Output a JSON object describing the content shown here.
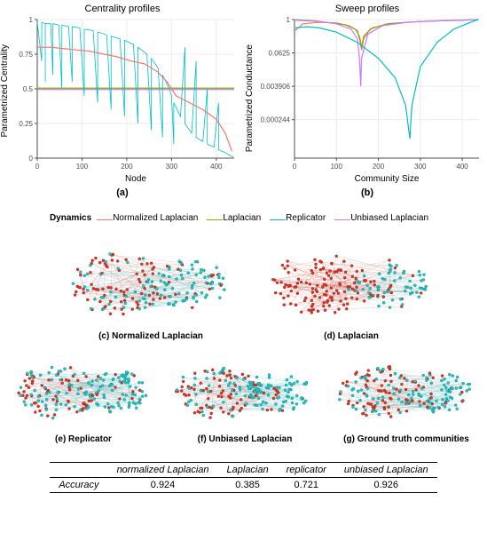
{
  "panel_a": {
    "title": "Centrality profiles",
    "label": "(a)",
    "xlabel": "Node",
    "ylabel": "Parametrized Centrality",
    "xlim": [
      0,
      440
    ],
    "xticks": [
      0,
      100,
      200,
      300,
      400
    ],
    "ylim": [
      0,
      1
    ],
    "yticks": [
      0,
      0.25,
      0.5,
      0.75,
      1
    ],
    "ref_line_y": 0.5,
    "bg": "#ffffff",
    "grid": "#ebebeb",
    "axis": "#4d4d4d",
    "series": {
      "norm_lap": {
        "color": "#f8766d",
        "pts": [
          [
            0,
            0.8
          ],
          [
            30,
            0.8
          ],
          [
            60,
            0.79
          ],
          [
            90,
            0.78
          ],
          [
            120,
            0.77
          ],
          [
            150,
            0.75
          ],
          [
            180,
            0.73
          ],
          [
            210,
            0.7
          ],
          [
            240,
            0.68
          ],
          [
            270,
            0.62
          ],
          [
            290,
            0.55
          ],
          [
            300,
            0.5
          ],
          [
            310,
            0.45
          ],
          [
            340,
            0.4
          ],
          [
            370,
            0.35
          ],
          [
            400,
            0.28
          ],
          [
            420,
            0.18
          ],
          [
            435,
            0.05
          ]
        ]
      },
      "lap": {
        "color": "#7cae00",
        "pts": [
          [
            0,
            0.505
          ],
          [
            440,
            0.505
          ]
        ]
      },
      "unb_lap": {
        "color": "#c77cff",
        "pts": [
          [
            0,
            0.495
          ],
          [
            440,
            0.495
          ]
        ]
      },
      "replicator": {
        "color": "#00bfc4",
        "pts": [
          [
            0,
            0.98
          ],
          [
            10,
            0.7
          ],
          [
            10,
            0.98
          ],
          [
            18,
            0.97
          ],
          [
            18,
            0.55
          ],
          [
            18,
            0.97
          ],
          [
            30,
            0.97
          ],
          [
            35,
            0.6
          ],
          [
            35,
            0.97
          ],
          [
            48,
            0.96
          ],
          [
            55,
            0.5
          ],
          [
            55,
            0.96
          ],
          [
            70,
            0.95
          ],
          [
            78,
            0.55
          ],
          [
            78,
            0.95
          ],
          [
            95,
            0.94
          ],
          [
            105,
            0.45
          ],
          [
            105,
            0.93
          ],
          [
            125,
            0.92
          ],
          [
            135,
            0.4
          ],
          [
            135,
            0.91
          ],
          [
            155,
            0.89
          ],
          [
            165,
            0.35
          ],
          [
            165,
            0.88
          ],
          [
            185,
            0.86
          ],
          [
            195,
            0.3
          ],
          [
            195,
            0.85
          ],
          [
            215,
            0.82
          ],
          [
            225,
            0.25
          ],
          [
            225,
            0.8
          ],
          [
            245,
            0.75
          ],
          [
            255,
            0.2
          ],
          [
            255,
            0.72
          ],
          [
            270,
            0.65
          ],
          [
            280,
            0.15
          ],
          [
            280,
            0.6
          ],
          [
            295,
            0.5
          ],
          [
            300,
            0.45
          ],
          [
            305,
            0.1
          ],
          [
            305,
            0.4
          ],
          [
            320,
            0.3
          ],
          [
            330,
            0.8
          ],
          [
            330,
            0.25
          ],
          [
            345,
            0.18
          ],
          [
            355,
            0.7
          ],
          [
            355,
            0.15
          ],
          [
            370,
            0.12
          ],
          [
            380,
            0.5
          ],
          [
            380,
            0.1
          ],
          [
            395,
            0.08
          ],
          [
            405,
            0.4
          ],
          [
            405,
            0.06
          ],
          [
            420,
            0.04
          ],
          [
            430,
            0.02
          ],
          [
            438,
            0.01
          ]
        ]
      }
    }
  },
  "panel_b": {
    "title": "Sweep profiles",
    "label": "(b)",
    "xlabel": "Community Size",
    "ylabel": "Parametrized Conductance",
    "xlim": [
      0,
      440
    ],
    "xticks": [
      0,
      100,
      200,
      300,
      400
    ],
    "yticks_log": [
      0.000244,
      0.003906,
      0.0625,
      1
    ],
    "bg": "#ffffff",
    "grid": "#ebebeb",
    "axis": "#4d4d4d",
    "series": {
      "norm_lap": {
        "color": "#f8766d",
        "pts_log": [
          [
            2,
            0.4
          ],
          [
            20,
            0.7
          ],
          [
            60,
            0.8
          ],
          [
            100,
            0.75
          ],
          [
            130,
            0.6
          ],
          [
            150,
            0.4
          ],
          [
            155,
            0.2
          ],
          [
            160,
            0.08
          ],
          [
            165,
            0.2
          ],
          [
            180,
            0.45
          ],
          [
            220,
            0.7
          ],
          [
            280,
            0.82
          ],
          [
            350,
            0.9
          ],
          [
            420,
            0.97
          ],
          [
            438,
            1.0
          ]
        ]
      },
      "lap": {
        "color": "#7cae00",
        "pts_log": [
          [
            2,
            0.95
          ],
          [
            60,
            0.85
          ],
          [
            120,
            0.65
          ],
          [
            145,
            0.45
          ],
          [
            155,
            0.25
          ],
          [
            160,
            0.1
          ],
          [
            165,
            0.25
          ],
          [
            185,
            0.5
          ],
          [
            230,
            0.72
          ],
          [
            300,
            0.85
          ],
          [
            380,
            0.93
          ],
          [
            438,
            1.0
          ]
        ]
      },
      "replicator": {
        "color": "#00bfc4",
        "pts_log": [
          [
            2,
            0.5
          ],
          [
            30,
            0.55
          ],
          [
            60,
            0.5
          ],
          [
            100,
            0.35
          ],
          [
            150,
            0.15
          ],
          [
            200,
            0.04
          ],
          [
            240,
            0.008
          ],
          [
            265,
            0.0008
          ],
          [
            275,
            5e-05
          ],
          [
            280,
            0.0008
          ],
          [
            300,
            0.02
          ],
          [
            340,
            0.15
          ],
          [
            380,
            0.45
          ],
          [
            420,
            0.8
          ],
          [
            438,
            1.0
          ]
        ]
      },
      "unb_lap": {
        "color": "#c77cff",
        "pts_log": [
          [
            2,
            1.0
          ],
          [
            50,
            0.9
          ],
          [
            100,
            0.7
          ],
          [
            135,
            0.45
          ],
          [
            150,
            0.2
          ],
          [
            155,
            0.04
          ],
          [
            158,
            0.004
          ],
          [
            160,
            0.04
          ],
          [
            175,
            0.3
          ],
          [
            210,
            0.6
          ],
          [
            270,
            0.8
          ],
          [
            350,
            0.92
          ],
          [
            438,
            1.0
          ]
        ]
      }
    }
  },
  "legend": {
    "title": "Dynamics",
    "items": [
      {
        "label": "Normalized Laplacian",
        "color": "#f8766d"
      },
      {
        "label": "Laplacian",
        "color": "#7cae00"
      },
      {
        "label": "Replicator",
        "color": "#00bfc4"
      },
      {
        "label": "Unbiased Laplacian",
        "color": "#c77cff"
      }
    ]
  },
  "networks": {
    "c": {
      "label": "(c) Normalized Laplacian",
      "split": 0.6,
      "left": "#e03020",
      "right": "#18c8c8"
    },
    "d": {
      "label": "(d) Laplacian",
      "split": 0.94,
      "left": "#e03020",
      "right": "#18c8c8"
    },
    "e": {
      "label": "(e) Replicator",
      "split": 0.5,
      "left": "#e03020",
      "right": "#18c8c8"
    },
    "f": {
      "label": "(f) Unbiased Laplacian",
      "split": 0.6,
      "left": "#e03020",
      "right": "#18c8c8"
    },
    "g": {
      "label": "(g) Ground truth communities",
      "split": 0.56,
      "left": "#e03020",
      "right": "#18c8c8"
    }
  },
  "accuracy_table": {
    "row_label": "Accuracy",
    "cols": [
      "normalized Laplacian",
      "Laplacian",
      "replicator",
      "unbiased Laplacian"
    ],
    "vals": [
      "0.924",
      "0.385",
      "0.721",
      "0.926"
    ]
  }
}
